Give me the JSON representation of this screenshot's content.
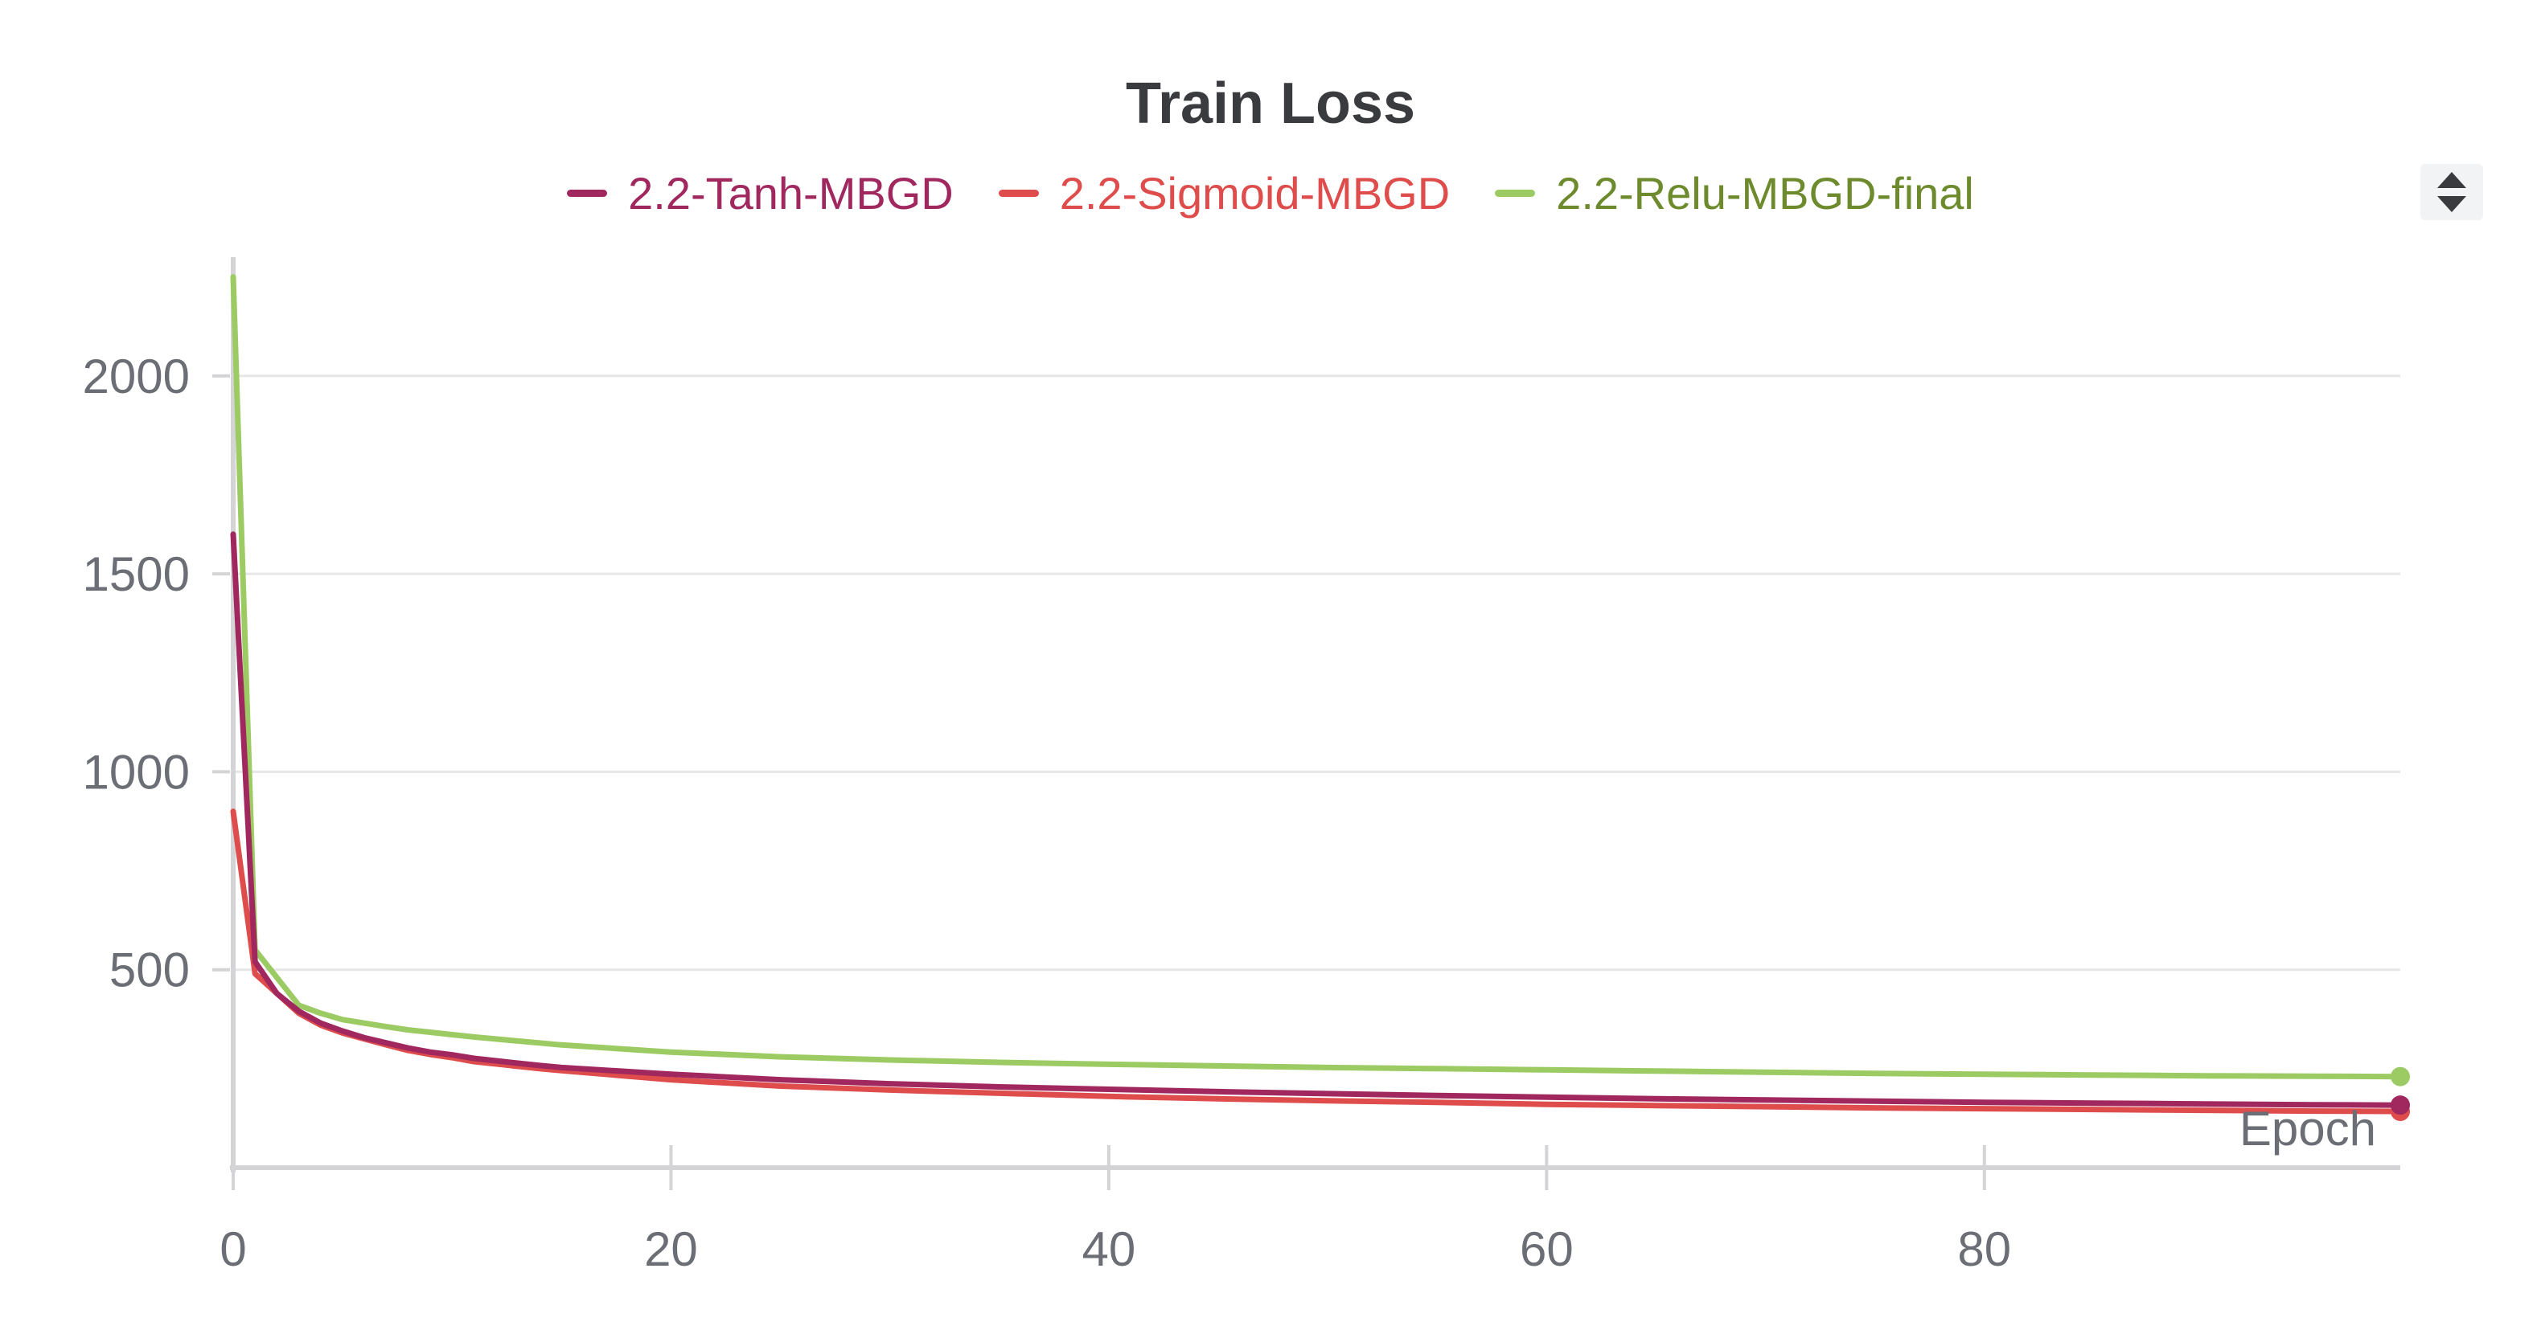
{
  "chart_data": {
    "type": "line",
    "title": "Train Loss",
    "xlabel": "Epoch",
    "ylabel": "",
    "xlim": [
      0,
      99
    ],
    "ylim": [
      0,
      2300
    ],
    "x_ticks": [
      0,
      20,
      40,
      60,
      80
    ],
    "y_ticks": [
      500,
      1000,
      1500,
      2000
    ],
    "grid": true,
    "legend_position": "top",
    "x": [
      0,
      1,
      2,
      3,
      4,
      5,
      6,
      7,
      8,
      9,
      10,
      11,
      12,
      13,
      14,
      15,
      20,
      25,
      30,
      35,
      40,
      45,
      50,
      55,
      60,
      65,
      70,
      75,
      80,
      85,
      90,
      95,
      99
    ],
    "series": [
      {
        "name": "2.2-Tanh-MBGD",
        "color": "#a1275f",
        "values": [
          1600,
          520,
          440,
          395,
          365,
          345,
          328,
          315,
          302,
          292,
          285,
          276,
          270,
          264,
          258,
          253,
          236,
          222,
          212,
          204,
          198,
          192,
          187,
          182,
          178,
          174,
          171,
          168,
          165,
          163,
          161,
          159,
          158
        ]
      },
      {
        "name": "2.2-Sigmoid-MBGD",
        "color": "#de4c4c",
        "values": [
          900,
          490,
          440,
          390,
          360,
          340,
          325,
          310,
          296,
          286,
          278,
          268,
          262,
          256,
          250,
          245,
          222,
          206,
          196,
          188,
          180,
          174,
          169,
          165,
          160,
          157,
          154,
          151,
          149,
          147,
          145,
          143,
          142
        ]
      },
      {
        "name": "2.2-Relu-MBGD-final",
        "color": "#9ccb63",
        "values": [
          2250,
          550,
          480,
          410,
          390,
          374,
          365,
          356,
          348,
          342,
          336,
          330,
          325,
          320,
          315,
          310,
          292,
          280,
          272,
          266,
          261,
          257,
          253,
          250,
          247,
          244,
          241,
          238,
          236,
          234,
          232,
          231,
          230
        ]
      }
    ]
  },
  "legend_text_colors": [
    "#a1275f",
    "#de4c4c",
    "#6d8a2c"
  ],
  "menu": {
    "icon": "chevron-up-down-icon"
  }
}
